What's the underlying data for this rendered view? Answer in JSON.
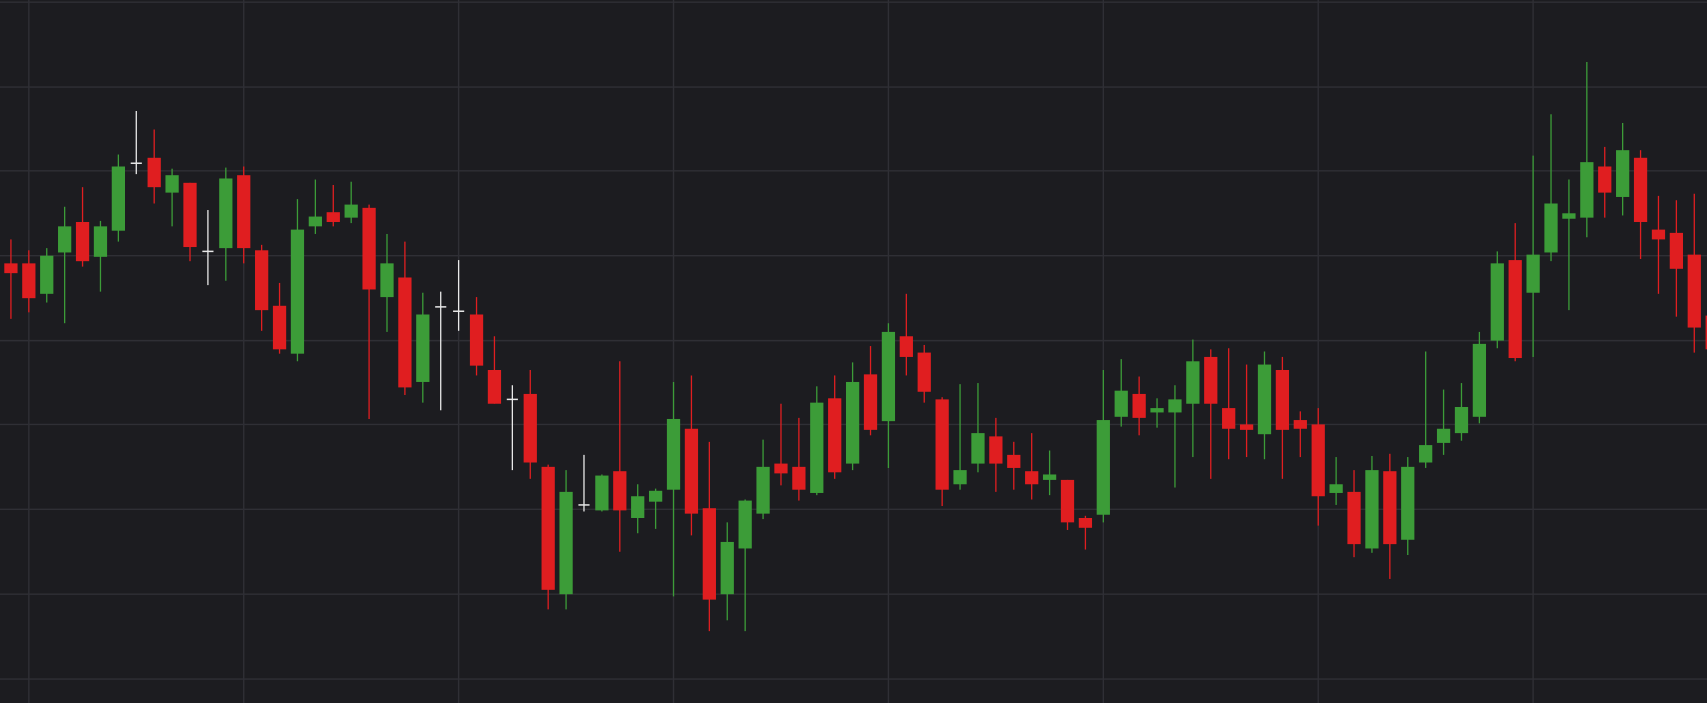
{
  "chart_data": {
    "type": "candlestick",
    "x": [
      0,
      1,
      2,
      3,
      4,
      5,
      6,
      7,
      8,
      9,
      10,
      11,
      12,
      13,
      14,
      15,
      16,
      17,
      18,
      19,
      20,
      21,
      22,
      23,
      24,
      25,
      26,
      27,
      28,
      29,
      30,
      31,
      32,
      33,
      34,
      35,
      36,
      37,
      38,
      39,
      40,
      41,
      42,
      43,
      44,
      45,
      46,
      47,
      48,
      49,
      50,
      51,
      52,
      53,
      54,
      55,
      56,
      57,
      58,
      59,
      60,
      61,
      62,
      63,
      64,
      65,
      66,
      67,
      68,
      69,
      70,
      71,
      72,
      73,
      74,
      75,
      76,
      77,
      78,
      79,
      80,
      81,
      82,
      83,
      84,
      85,
      86,
      87,
      88,
      89,
      90,
      91,
      92,
      93,
      94,
      95
    ],
    "open": [
      404,
      404,
      376,
      414,
      442,
      410,
      434,
      496,
      501,
      469,
      478,
      415,
      418,
      485,
      416,
      365,
      321,
      438,
      451,
      446,
      455,
      373,
      391,
      295,
      364,
      360,
      357,
      306,
      279,
      284,
      217,
      100,
      182,
      177,
      213,
      170,
      185,
      196,
      252,
      179,
      100,
      142,
      174,
      220,
      217,
      193,
      280,
      220,
      302,
      259,
      337,
      322,
      279,
      201,
      220,
      245,
      228,
      213,
      205,
      205,
      170,
      173,
      263,
      284,
      267,
      267,
      275,
      318,
      271,
      256,
      247,
      306,
      260,
      256,
      193,
      194,
      142,
      213,
      150,
      221,
      239,
      248,
      263,
      333,
      407,
      377,
      414,
      445,
      446,
      493,
      465,
      501,
      435,
      432,
      412,
      356
    ],
    "high": [
      426,
      416,
      418,
      456,
      474,
      443,
      504,
      544,
      527,
      491,
      478,
      453,
      492,
      493,
      421,
      386,
      463,
      481,
      476,
      479,
      458,
      431,
      424,
      377,
      378,
      407,
      373,
      337,
      292,
      306,
      219,
      214,
      228,
      210,
      314,
      201,
      197,
      295,
      301,
      240,
      166,
      187,
      242,
      275,
      262,
      291,
      301,
      313,
      328,
      349,
      376,
      329,
      281,
      293,
      294,
      262,
      240,
      248,
      232,
      205,
      172,
      306,
      316,
      300,
      280,
      292,
      334,
      325,
      326,
      311,
      323,
      318,
      268,
      271,
      226,
      214,
      227,
      229,
      226,
      323,
      288,
      294,
      341,
      415,
      441,
      503,
      541,
      481,
      589,
      511,
      533,
      508,
      466,
      462,
      468,
      366
    ],
    "low": [
      353,
      359,
      368,
      349,
      401,
      378,
      424,
      486,
      459,
      438,
      406,
      384,
      388,
      404,
      342,
      321,
      314,
      431,
      438,
      441,
      261,
      341,
      283,
      276,
      269,
      342,
      301,
      275,
      214,
      206,
      86,
      86,
      176,
      176,
      139,
      156,
      160,
      98,
      154,
      66,
      76,
      66,
      169,
      200,
      186,
      191,
      206,
      214,
      246,
      216,
      301,
      276,
      181,
      196,
      212,
      194,
      196,
      187,
      191,
      159,
      141,
      166,
      254,
      246,
      253,
      198,
      226,
      206,
      224,
      226,
      224,
      206,
      226,
      163,
      182,
      134,
      138,
      114,
      136,
      216,
      228,
      241,
      257,
      326,
      314,
      318,
      406,
      361,
      428,
      446,
      448,
      408,
      376,
      355,
      322,
      316
    ],
    "close": [
      395,
      372,
      411,
      438,
      406,
      438,
      493,
      496,
      474,
      485,
      419,
      415,
      482,
      418,
      361,
      325,
      435,
      447,
      442,
      458,
      380,
      404,
      290,
      357,
      364,
      360,
      310,
      275,
      279,
      221,
      104,
      194,
      182,
      209,
      177,
      190,
      195,
      261,
      174,
      95,
      148,
      186,
      217,
      211,
      196,
      276,
      212,
      295,
      251,
      341,
      318,
      286,
      196,
      214,
      248,
      220,
      216,
      201,
      210,
      166,
      161,
      260,
      287,
      262,
      271,
      279,
      314,
      275,
      252,
      251,
      311,
      251,
      252,
      190,
      201,
      146,
      214,
      146,
      217,
      237,
      252,
      272,
      330,
      404,
      317,
      412,
      459,
      450,
      497,
      469,
      508,
      442,
      426,
      399,
      345,
      325
    ],
    "up_color": "#3c9c38",
    "down_color": "#e01e20",
    "flat_color": "#e8e8e8",
    "xlim": [
      -0.61,
      94.71
    ],
    "ylim": [
      0,
      646
    ],
    "xticks": [
      1,
      13,
      25,
      37,
      49,
      61,
      73,
      85
    ],
    "yticks": [
      22,
      100,
      178,
      256,
      333,
      411,
      489,
      566,
      644
    ],
    "grid": true
  }
}
